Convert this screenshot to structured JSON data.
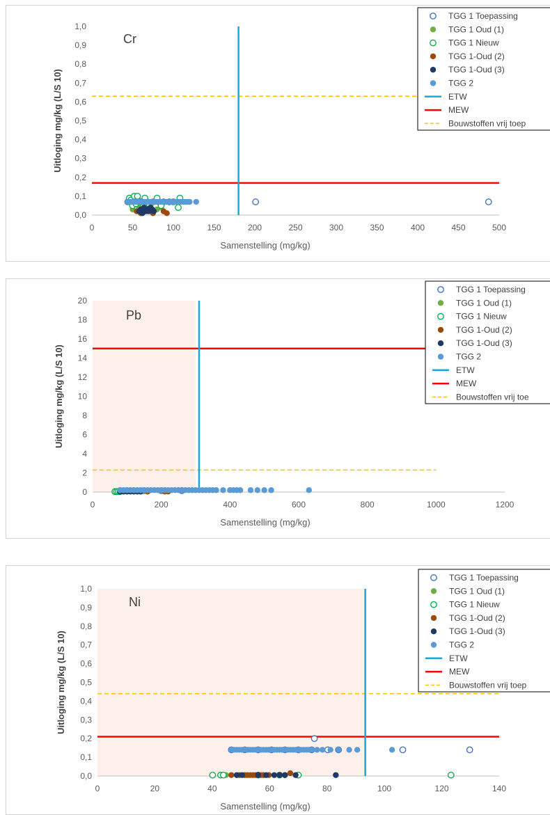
{
  "colors": {
    "tgg1_toepassing": "#4472c4",
    "tgg1_oud1": "#70ad47",
    "tgg1_nieuw": "#00b050",
    "tgg1_oud2": "#9c4a0c",
    "tgg1_oud3": "#1f3864",
    "tgg2": "#5b9bd5",
    "etw": "#1aa7dc",
    "mew": "#ff0000",
    "vrij": "#ffc000",
    "zone": "#fdf0ea"
  },
  "chart_data": [
    {
      "type": "scatter",
      "element_label": "Cr",
      "xlabel": "Samenstelling (mg/kg)",
      "ylabel": "Uitloging mg/kg (L/S 10)",
      "xlim": [
        0,
        500
      ],
      "ylim": [
        0,
        1.0
      ],
      "xticks": [
        "0",
        "50",
        "100",
        "150",
        "200",
        "250",
        "300",
        "350",
        "400",
        "450",
        "500"
      ],
      "yticks": [
        "0,0",
        "0,1",
        "0,2",
        "0,3",
        "0,4",
        "0,5",
        "0,6",
        "0,7",
        "0,8",
        "0,9",
        "1,0"
      ],
      "legend": [
        "TGG 1 Toepassing",
        "TGG 1 Oud (1)",
        "TGG 1 Nieuw",
        "TGG 1-Oud (2)",
        "TGG 1-Oud (3)",
        "TGG 2",
        "ETW",
        "MEW",
        "Bouwstoffen vrij toep"
      ],
      "zone": null,
      "lines": {
        "etw_x": 180,
        "mew_y": 0.17,
        "vrij_y": 0.63
      },
      "series": [
        {
          "name": "TGG 1 Toepassing",
          "x": [
            44,
            52,
            60,
            68,
            75,
            82,
            88,
            95,
            201,
            487
          ],
          "y": [
            0.07,
            0.07,
            0.07,
            0.07,
            0.07,
            0.07,
            0.07,
            0.07,
            0.07,
            0.07
          ]
        },
        {
          "name": "TGG 1 Oud (1)",
          "x": [
            50,
            58,
            65,
            72,
            80,
            85
          ],
          "y": [
            0.03,
            0.04,
            0.02,
            0.05,
            0.03,
            0.04
          ]
        },
        {
          "name": "TGG 1 Nieuw",
          "x": [
            46,
            48,
            50,
            52,
            54,
            56,
            60,
            65,
            70,
            80,
            85,
            100,
            106,
            108
          ],
          "y": [
            0.09,
            0.08,
            0.05,
            0.1,
            0.06,
            0.1,
            0.07,
            0.09,
            0.06,
            0.09,
            0.05,
            0.07,
            0.04,
            0.09
          ]
        },
        {
          "name": "TGG 1-Oud (2)",
          "x": [
            55,
            60,
            62,
            68,
            72,
            75,
            88,
            92
          ],
          "y": [
            0.02,
            0.01,
            0.03,
            0.02,
            0.04,
            0.01,
            0.02,
            0.01
          ]
        },
        {
          "name": "TGG 1-Oud (3)",
          "x": [
            58,
            60,
            62,
            64,
            66,
            68,
            70,
            72,
            74,
            76
          ],
          "y": [
            0.02,
            0.03,
            0.01,
            0.04,
            0.02,
            0.03,
            0.02,
            0.04,
            0.03,
            0.02
          ]
        },
        {
          "name": "TGG 2",
          "x": [
            44,
            46,
            48,
            50,
            52,
            54,
            56,
            58,
            60,
            62,
            64,
            66,
            68,
            70,
            72,
            74,
            76,
            78,
            80,
            82,
            84,
            86,
            88,
            90,
            92,
            94,
            96,
            98,
            100,
            102,
            104,
            106,
            108,
            110,
            112,
            114,
            116,
            118,
            120,
            128
          ],
          "y": [
            0.07,
            0.07,
            0.07,
            0.07,
            0.07,
            0.07,
            0.07,
            0.07,
            0.07,
            0.07,
            0.07,
            0.07,
            0.07,
            0.07,
            0.07,
            0.07,
            0.07,
            0.07,
            0.07,
            0.07,
            0.07,
            0.07,
            0.07,
            0.07,
            0.07,
            0.07,
            0.07,
            0.07,
            0.07,
            0.07,
            0.07,
            0.07,
            0.07,
            0.07,
            0.07,
            0.07,
            0.07,
            0.07,
            0.07,
            0.07
          ]
        }
      ]
    },
    {
      "type": "scatter",
      "element_label": "Pb",
      "xlabel": "Samenstelling (mg/kg)",
      "ylabel": "Uitloging mg/kg (L/S 10)",
      "xlim": [
        0,
        1200
      ],
      "ylim": [
        0,
        20
      ],
      "xticks": [
        "0",
        "200",
        "400",
        "600",
        "800",
        "1000",
        "1200"
      ],
      "yticks": [
        "0",
        "2",
        "4",
        "6",
        "8",
        "10",
        "12",
        "14",
        "16",
        "18",
        "20"
      ],
      "legend": [
        "TGG 1 Toepassing",
        "TGG 1 Oud (1)",
        "TGG 1 Nieuw",
        "TGG 1-Oud (2)",
        "TGG 1-Oud (3)",
        "TGG 2",
        "ETW",
        "MEW",
        "Bouwstoffen vrij toe"
      ],
      "zone": [
        0,
        300
      ],
      "lines": {
        "etw_x": 310,
        "mew_y": 15,
        "vrij_y": 2.3,
        "vrij_xmax": 1000
      },
      "series": [
        {
          "name": "TGG 1 Toepassing",
          "x": [
            80,
            100,
            120,
            150,
            200,
            260
          ],
          "y": [
            0.15,
            0.15,
            0.15,
            0.15,
            0.15,
            0.15
          ]
        },
        {
          "name": "TGG 1 Oud (1)",
          "x": [
            75,
            90,
            110,
            130,
            160
          ],
          "y": [
            0.05,
            0.05,
            0.05,
            0.05,
            0.05
          ]
        },
        {
          "name": "TGG 1 Nieuw",
          "x": [
            65,
            70,
            75,
            80
          ],
          "y": [
            0.05,
            0.05,
            0.05,
            0.05
          ]
        },
        {
          "name": "TGG 1-Oud (2)",
          "x": [
            100,
            120,
            140,
            160,
            210,
            220
          ],
          "y": [
            0.05,
            0.05,
            0.05,
            0.05,
            0.05,
            0.05
          ]
        },
        {
          "name": "TGG 1-Oud (3)",
          "x": [
            80,
            90,
            100,
            110,
            120,
            130,
            140
          ],
          "y": [
            0.05,
            0.05,
            0.05,
            0.05,
            0.05,
            0.05,
            0.05
          ]
        },
        {
          "name": "TGG 2",
          "x": [
            80,
            90,
            100,
            110,
            120,
            130,
            140,
            150,
            160,
            170,
            180,
            190,
            200,
            210,
            220,
            230,
            240,
            250,
            260,
            270,
            280,
            290,
            300,
            310,
            320,
            330,
            340,
            350,
            360,
            380,
            400,
            410,
            420,
            430,
            460,
            480,
            500,
            520,
            630
          ],
          "y": [
            0.2,
            0.2,
            0.2,
            0.2,
            0.2,
            0.2,
            0.2,
            0.2,
            0.2,
            0.2,
            0.2,
            0.2,
            0.2,
            0.2,
            0.2,
            0.2,
            0.2,
            0.2,
            0.2,
            0.2,
            0.2,
            0.2,
            0.2,
            0.2,
            0.2,
            0.2,
            0.2,
            0.2,
            0.2,
            0.2,
            0.2,
            0.2,
            0.2,
            0.2,
            0.2,
            0.2,
            0.2,
            0.2,
            0.2
          ]
        }
      ]
    },
    {
      "type": "scatter",
      "element_label": "Ni",
      "xlabel": "Samenstelling (mg/kg)",
      "ylabel": "Uitloging mg/kg (L/S 10)",
      "xlim": [
        0,
        150
      ],
      "ylim": [
        0,
        1.0
      ],
      "xticks": [
        "0",
        "20",
        "40",
        "60",
        "80",
        "100",
        "120",
        "140"
      ],
      "yticks": [
        "0,0",
        "0,1",
        "0,2",
        "0,3",
        "0,4",
        "0,5",
        "0,6",
        "0,7",
        "0,8",
        "0,9",
        "1,0"
      ],
      "legend": [
        "TGG 1 Toepassing",
        "TGG 1 Oud (1)",
        "TGG 1 Nieuw",
        "TGG 1-Oud (2)",
        "TGG 1-Oud (3)",
        "TGG 2",
        "ETW",
        "MEW",
        "Bouwstoffen vrij toep"
      ],
      "zone": [
        0,
        100
      ],
      "lines": {
        "etw_x": 100,
        "mew_y": 0.21,
        "vrij_y": 0.44
      },
      "series": [
        {
          "name": "TGG 1 Toepassing",
          "x": [
            50,
            55,
            60,
            65,
            70,
            75,
            80,
            81,
            86,
            90,
            114,
            139
          ],
          "y": [
            0.14,
            0.14,
            0.14,
            0.14,
            0.14,
            0.14,
            0.14,
            0.2,
            0.14,
            0.14,
            0.14,
            0.14
          ]
        },
        {
          "name": "TGG 1 Oud (1)",
          "x": [
            48,
            55,
            62,
            70,
            75
          ],
          "y": [
            0.005,
            0.005,
            0.005,
            0.005,
            0.005
          ]
        },
        {
          "name": "TGG 1 Nieuw",
          "x": [
            43,
            46,
            47,
            60,
            68,
            75,
            132
          ],
          "y": [
            0.005,
            0.005,
            0.005,
            0.005,
            0.005,
            0.005,
            0.005
          ]
        },
        {
          "name": "TGG 1-Oud (2)",
          "x": [
            50,
            53,
            55,
            56,
            57,
            58,
            59,
            60,
            61,
            62,
            64,
            70,
            72
          ],
          "y": [
            0.005,
            0.005,
            0.005,
            0.005,
            0.005,
            0.005,
            0.005,
            0.005,
            0.005,
            0.005,
            0.005,
            0.005,
            0.015
          ]
        },
        {
          "name": "TGG 1-Oud (3)",
          "x": [
            52,
            54,
            60,
            63,
            66,
            68,
            70,
            74,
            89
          ],
          "y": [
            0.005,
            0.005,
            0.005,
            0.005,
            0.005,
            0.005,
            0.005,
            0.005,
            0.005
          ]
        },
        {
          "name": "TGG 2",
          "x": [
            50,
            51,
            52,
            53,
            54,
            55,
            56,
            57,
            58,
            59,
            60,
            61,
            62,
            63,
            64,
            65,
            66,
            67,
            68,
            69,
            70,
            71,
            72,
            73,
            74,
            75,
            76,
            77,
            78,
            79,
            80,
            82,
            84,
            87,
            90,
            94,
            97,
            110
          ],
          "y": [
            0.14,
            0.14,
            0.14,
            0.14,
            0.14,
            0.14,
            0.14,
            0.14,
            0.14,
            0.14,
            0.14,
            0.14,
            0.14,
            0.14,
            0.14,
            0.14,
            0.14,
            0.14,
            0.14,
            0.14,
            0.14,
            0.14,
            0.14,
            0.14,
            0.14,
            0.14,
            0.14,
            0.14,
            0.14,
            0.14,
            0.14,
            0.14,
            0.14,
            0.14,
            0.14,
            0.14,
            0.14,
            0.14
          ]
        }
      ]
    }
  ]
}
